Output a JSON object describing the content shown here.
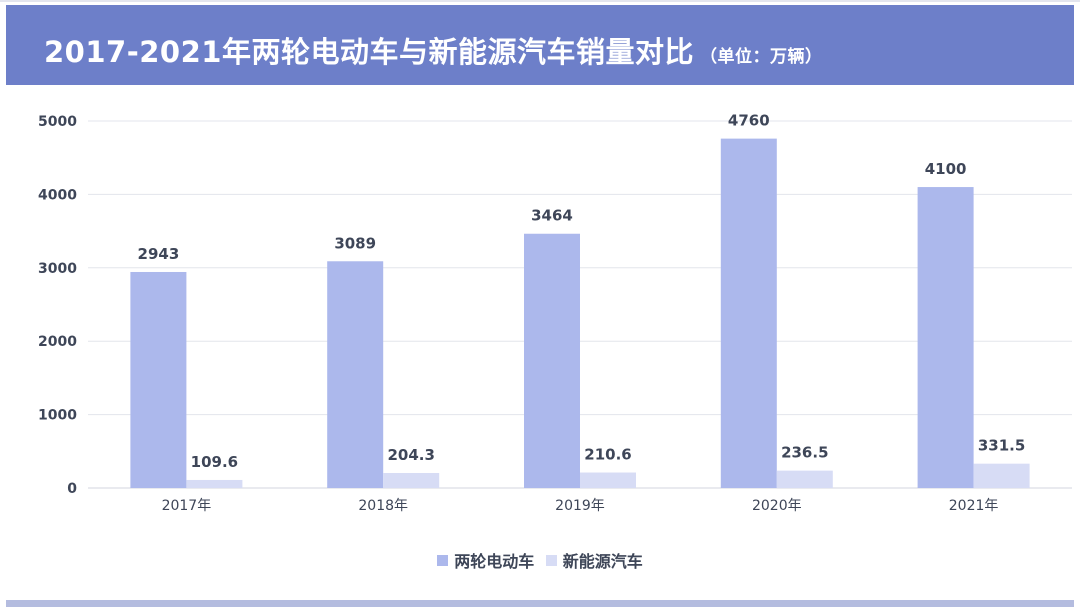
{
  "header": {
    "title": "2017-2021年两轮电动车与新能源汽车销量对比",
    "subtitle": "（单位：万辆）"
  },
  "chart_data": {
    "type": "bar",
    "categories": [
      "2017年",
      "2018年",
      "2019年",
      "2020年",
      "2021年"
    ],
    "series": [
      {
        "name": "两轮电动车",
        "values": [
          2943,
          3089,
          3464,
          4760,
          4100
        ],
        "color": "#acb8ec",
        "labels": [
          "2943",
          "3089",
          "3464",
          "4760",
          "4100"
        ]
      },
      {
        "name": "新能源汽车",
        "values": [
          109.6,
          204.3,
          210.6,
          236.5,
          331.5
        ],
        "color": "#d7dcf5",
        "labels": [
          "109.6",
          "204.3",
          "210.6",
          "236.5",
          "331.5"
        ]
      }
    ],
    "ylim": [
      0,
      5000
    ],
    "yticks": [
      0,
      1000,
      2000,
      3000,
      4000,
      5000
    ],
    "ytick_labels": [
      "0",
      "1000",
      "2000",
      "3000",
      "4000",
      "5000"
    ],
    "grid": true,
    "legend_position": "bottom-center",
    "colors": {
      "grid": "#e3e5ec",
      "axis_text": "#3e4658",
      "value_label": "#3e4658"
    }
  }
}
